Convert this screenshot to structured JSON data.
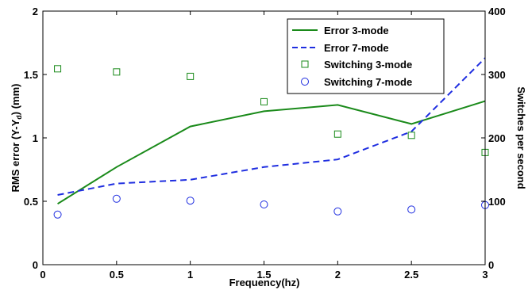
{
  "chart_data": {
    "type": "line",
    "title": "",
    "xlabel": "Frequency(hz)",
    "ylabel_left": {
      "main": "RMS error (Y-Y",
      "sub": "d",
      "tail": ") (mm)"
    },
    "ylabel_right": "Switches per second",
    "xlim": [
      0,
      3
    ],
    "ylim_left": [
      0,
      2
    ],
    "ylim_right": [
      0,
      400
    ],
    "x_ticks": [
      "0",
      "0.5",
      "1",
      "1.5",
      "2",
      "2.5",
      "3"
    ],
    "y_left_ticks": [
      "0",
      "0.5",
      "1",
      "1.5",
      "2"
    ],
    "y_right_ticks": [
      "0",
      "100",
      "200",
      "300",
      "400"
    ],
    "grid": false,
    "legend_position": "top-right",
    "series": [
      {
        "name": "Error 3-mode",
        "axis": "left",
        "style": "solid-line",
        "color": "#1a8a1a",
        "x": [
          0.1,
          0.5,
          1,
          1.5,
          2,
          2.5,
          3
        ],
        "y": [
          0.48,
          0.77,
          1.09,
          1.21,
          1.26,
          1.11,
          1.29
        ]
      },
      {
        "name": "Error 7-mode",
        "axis": "left",
        "style": "dashed-line",
        "color": "#1f2ee0",
        "x": [
          0.1,
          0.5,
          1,
          1.5,
          2,
          2.5,
          3
        ],
        "y": [
          0.55,
          0.64,
          0.67,
          0.77,
          0.83,
          1.05,
          1.63
        ]
      },
      {
        "name": "Switching 3-mode",
        "axis": "right",
        "style": "square-marker",
        "color": "#1a8a1a",
        "x": [
          0.1,
          0.5,
          1,
          1.5,
          2,
          2.5,
          3
        ],
        "y": [
          309,
          304,
          297,
          257,
          206,
          204,
          177
        ]
      },
      {
        "name": "Switching 7-mode",
        "axis": "right",
        "style": "circle-marker",
        "color": "#1f2ee0",
        "x": [
          0.1,
          0.5,
          1,
          1.5,
          2,
          2.5,
          3
        ],
        "y": [
          79,
          104,
          101,
          95,
          84,
          87,
          94
        ]
      }
    ]
  }
}
